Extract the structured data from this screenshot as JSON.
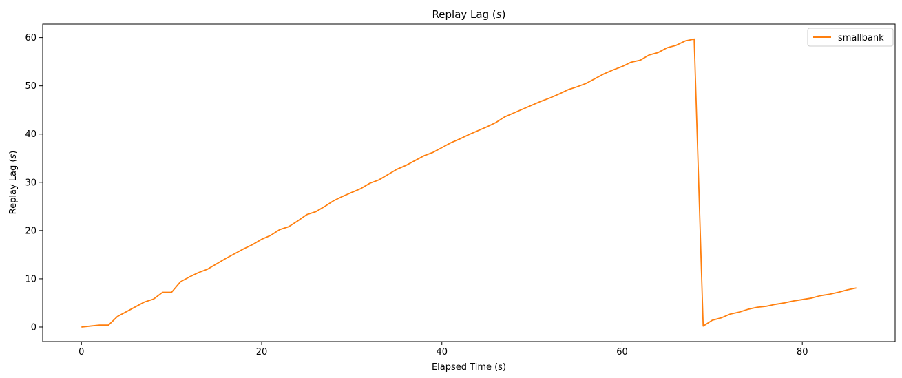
{
  "chart_data": {
    "type": "line",
    "title": "Replay Lag (s)",
    "title_main": "Replay Lag (",
    "title_unit": "s",
    "title_close": ")",
    "xlabel": "Elapsed Time (s)",
    "ylabel": "Replay Lag (s)",
    "ylabel_main": "Replay Lag (",
    "ylabel_unit": "s",
    "ylabel_close": ")",
    "xlim": [
      -4.3,
      90.3
    ],
    "ylim": [
      -3.0,
      62.8
    ],
    "xticks": [
      0,
      20,
      40,
      60,
      80
    ],
    "yticks": [
      0,
      10,
      20,
      30,
      40,
      50,
      60
    ],
    "grid": false,
    "legend_position": "top-right",
    "series": [
      {
        "name": "smallbank",
        "color": "#ff7f0e",
        "x": [
          0,
          1,
          2,
          3,
          4,
          5,
          6,
          7,
          8,
          9,
          10,
          11,
          12,
          13,
          14,
          15,
          16,
          17,
          18,
          19,
          20,
          21,
          22,
          23,
          24,
          25,
          26,
          27,
          28,
          29,
          30,
          31,
          32,
          33,
          34,
          35,
          36,
          37,
          38,
          39,
          40,
          41,
          42,
          43,
          44,
          45,
          46,
          47,
          48,
          49,
          50,
          51,
          52,
          53,
          54,
          55,
          56,
          57,
          58,
          59,
          60,
          61,
          62,
          63,
          64,
          65,
          66,
          67,
          68,
          69,
          70,
          71,
          72,
          73,
          74,
          75,
          76,
          77,
          78,
          79,
          80,
          81,
          82,
          83,
          84,
          85,
          86
        ],
        "y": [
          0.0,
          0.2,
          0.4,
          0.4,
          2.2,
          3.2,
          4.2,
          5.2,
          5.8,
          7.2,
          7.2,
          9.4,
          10.4,
          11.3,
          12.0,
          13.1,
          14.2,
          15.2,
          16.2,
          17.1,
          18.2,
          19.0,
          20.2,
          20.8,
          22.0,
          23.3,
          23.9,
          25.0,
          26.2,
          27.1,
          27.9,
          28.7,
          29.8,
          30.5,
          31.6,
          32.7,
          33.5,
          34.5,
          35.5,
          36.2,
          37.2,
          38.2,
          39.0,
          39.9,
          40.7,
          41.5,
          42.4,
          43.6,
          44.4,
          45.2,
          46.0,
          46.8,
          47.5,
          48.3,
          49.2,
          49.8,
          50.5,
          51.5,
          52.5,
          53.3,
          54.0,
          54.9,
          55.3,
          56.4,
          56.9,
          57.9,
          58.4,
          59.3,
          59.7,
          0.2,
          1.4,
          1.9,
          2.7,
          3.1,
          3.7,
          4.1,
          4.3,
          4.7,
          5.0,
          5.4,
          5.7,
          6.0,
          6.5,
          6.8,
          7.2,
          7.7,
          8.1
        ]
      }
    ]
  }
}
